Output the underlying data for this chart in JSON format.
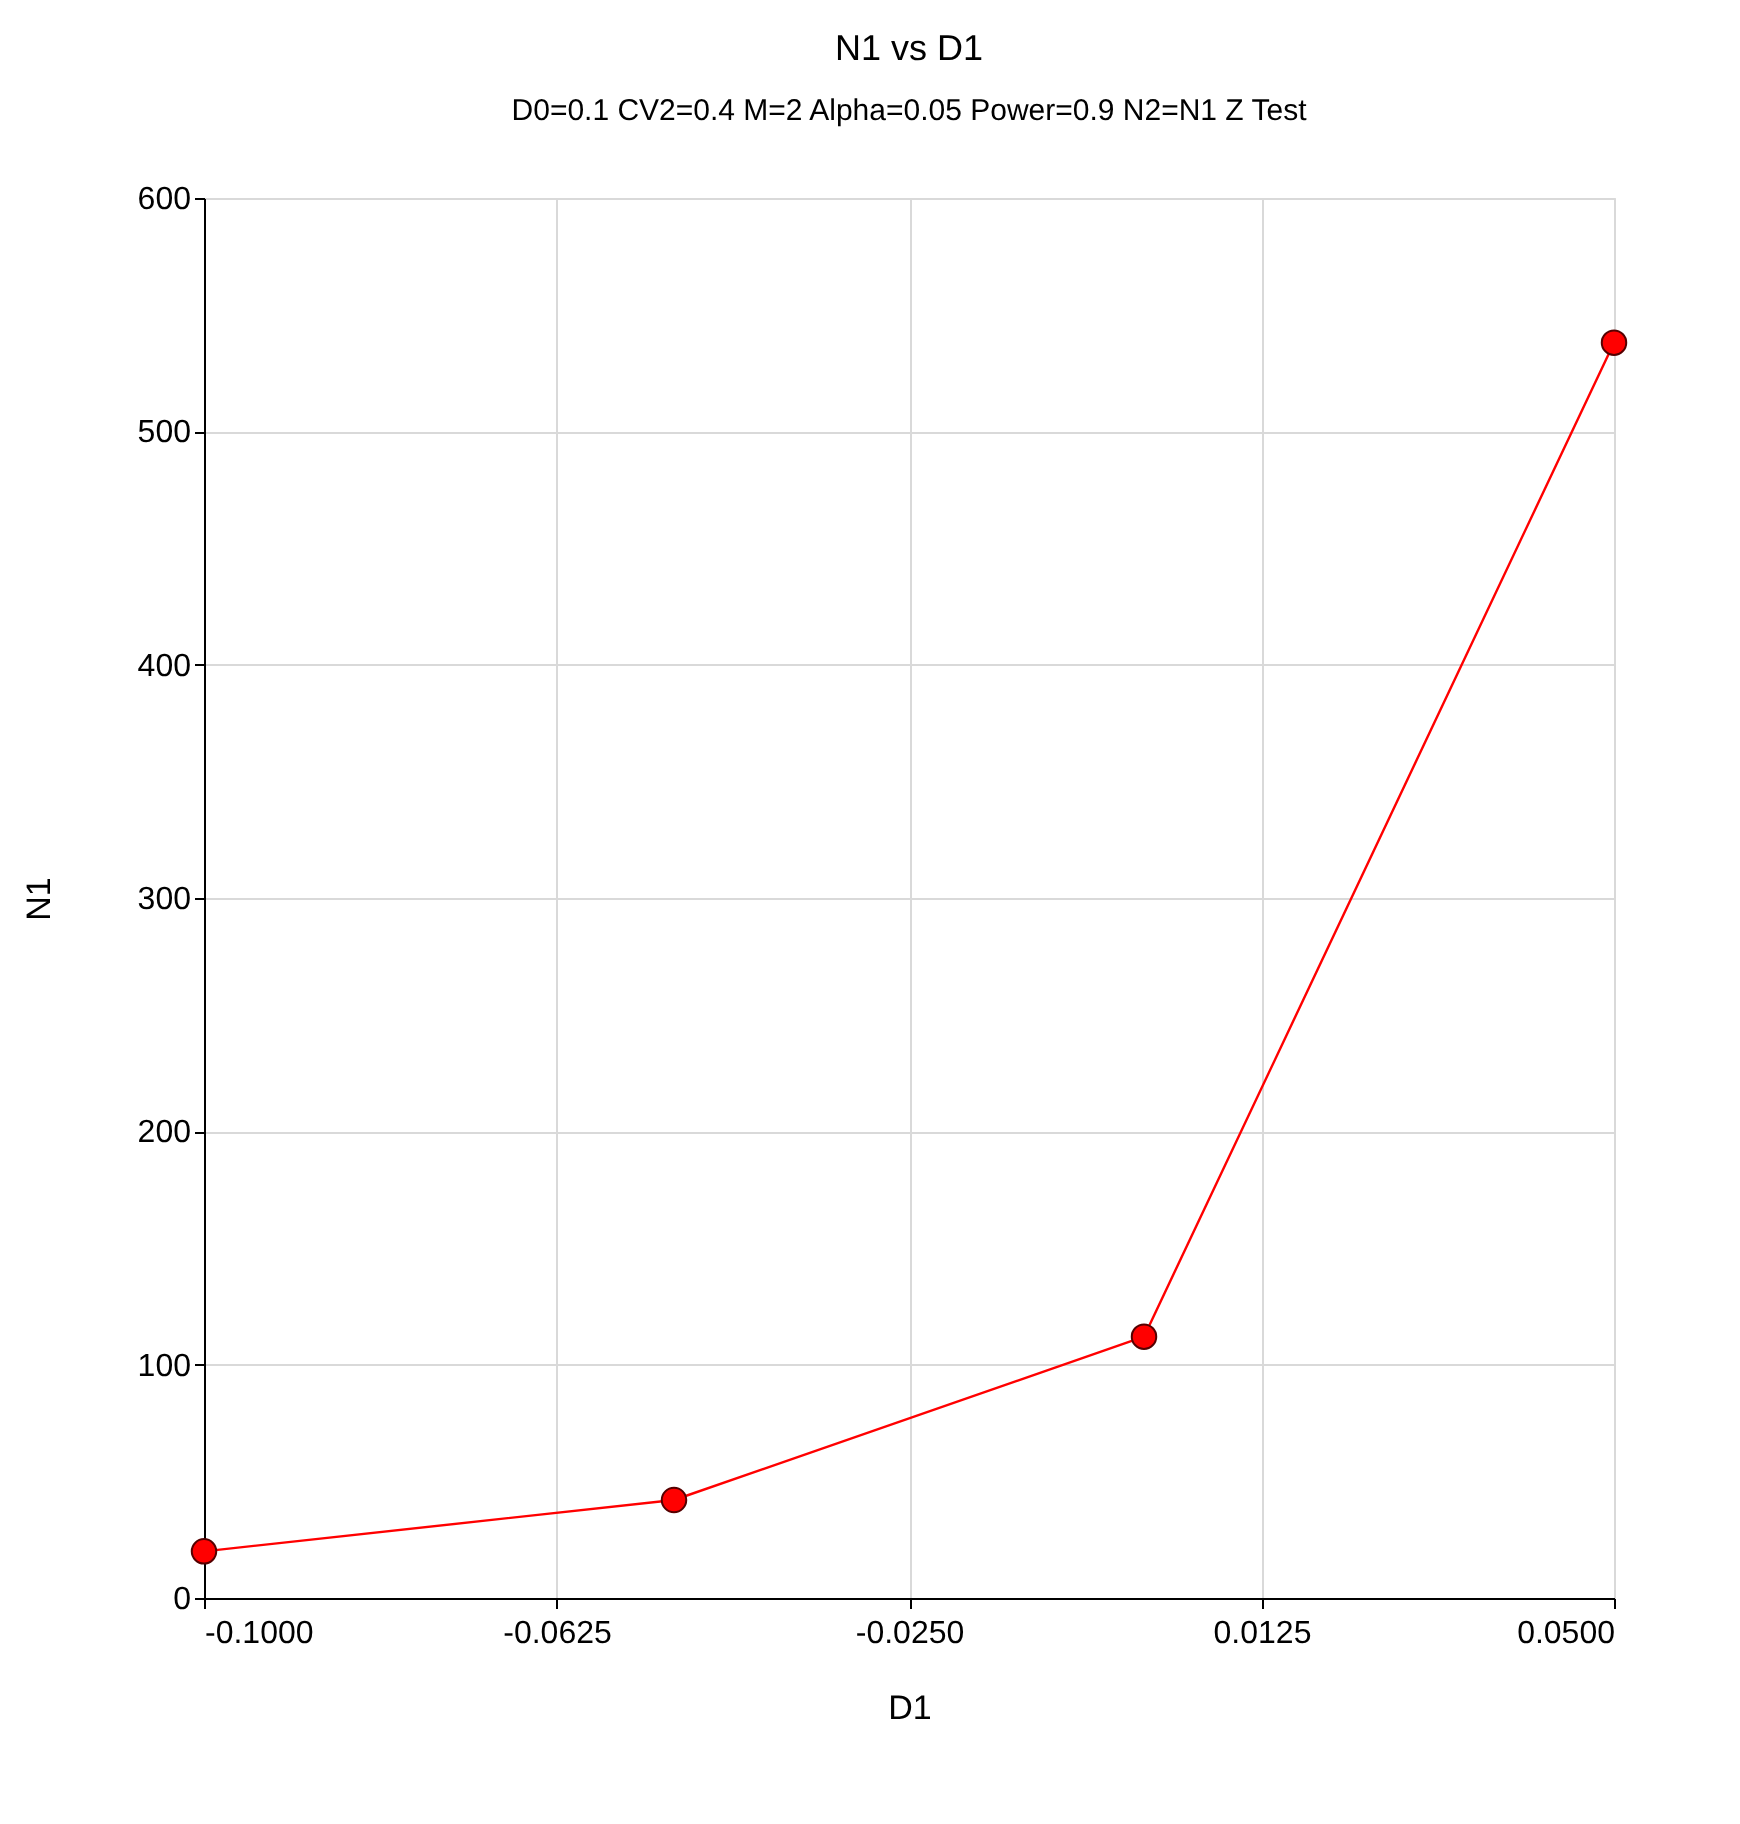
{
  "chart_data": {
    "type": "line",
    "title": "N1 vs D1",
    "subtitle": "D0=0.1 CV2=0.4 M=2 Alpha=0.05 Power=0.9 N2=N1 Z Test",
    "xlabel": "D1",
    "ylabel": "N1",
    "x": [
      -0.1,
      -0.05,
      0.0,
      0.05
    ],
    "series": [
      {
        "color": "#ff0000",
        "values": [
          20,
          42,
          112,
          538
        ]
      }
    ],
    "xlim": [
      -0.1,
      0.05
    ],
    "xticks": [
      {
        "value": -0.1,
        "label": "-0.1000"
      },
      {
        "value": -0.0625,
        "label": "-0.0625"
      },
      {
        "value": -0.025,
        "label": "-0.0250"
      },
      {
        "value": 0.0125,
        "label": "0.0125"
      },
      {
        "value": 0.05,
        "label": "0.0500"
      }
    ],
    "ylim": [
      0,
      600
    ],
    "yticks": [
      0,
      100,
      200,
      300,
      400,
      500,
      600
    ],
    "grid": true,
    "marker": "circle",
    "line_style": "solid"
  }
}
